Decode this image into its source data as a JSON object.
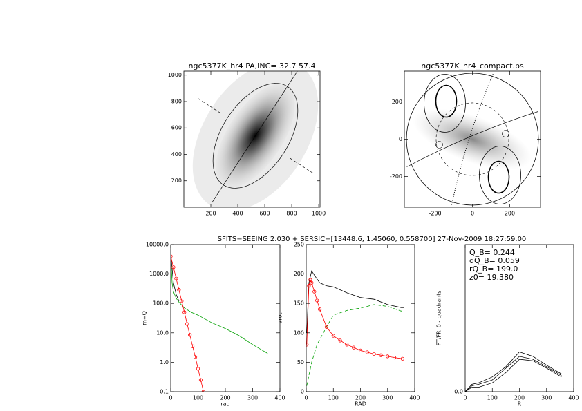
{
  "figure_title": "SFITS=SEEING 2.030 + SERSIC=[13448.6, 1.45060, 0.558700]  27-Nov-2009 18:27:59.00",
  "chart_data": [
    {
      "type": "image",
      "title": "ngc5377K_hr4 PA,INC= 32.7 57.4",
      "xlim": [
        0,
        1010
      ],
      "ylim": [
        0,
        1030
      ],
      "xticks": [
        200,
        400,
        600,
        800,
        1000
      ],
      "yticks": [
        200,
        400,
        600,
        800,
        1000
      ]
    },
    {
      "type": "contour",
      "title": "ngc5377K_hr4_compact.ps",
      "xlim": [
        -365,
        365
      ],
      "ylim": [
        -365,
        365
      ],
      "xticks": [
        -200,
        0,
        200
      ],
      "yticks": [
        -200,
        0,
        200
      ]
    },
    {
      "type": "line",
      "xlabel": "rad",
      "ylabel": "m=Q",
      "log_y": true,
      "xlim": [
        0,
        400
      ],
      "ylim": [
        0.1,
        10000
      ],
      "xticks": [
        0,
        100,
        200,
        300,
        400
      ],
      "yticks": [
        0.1,
        {
          "value": 1,
          "label": "1.0"
        },
        {
          "value": 10,
          "label": "10.0"
        },
        {
          "value": 100,
          "label": "100.0"
        },
        {
          "value": 1000,
          "label": "1000.0"
        },
        {
          "value": 10000,
          "label": "10000.0"
        }
      ],
      "series": [
        {
          "color": "#000000",
          "linestyle": "solid",
          "x": [
            0,
            5,
            10,
            20,
            30
          ],
          "values": [
            5000,
            1500,
            500,
            200,
            120
          ]
        },
        {
          "color": "#00a000",
          "linestyle": "solid",
          "x": [
            0,
            5,
            10,
            20,
            30,
            50,
            75,
            100,
            150,
            200,
            250,
            300,
            355
          ],
          "values": [
            4000,
            500,
            250,
            150,
            110,
            70,
            50,
            40,
            22,
            14,
            8,
            4,
            2
          ]
        },
        {
          "color": "#ff0000",
          "linestyle": "solid",
          "marker": "o",
          "x": [
            0,
            10,
            20,
            30,
            40,
            50,
            60,
            70,
            80,
            90,
            100,
            110,
            120
          ],
          "values": [
            4000,
            1700,
            700,
            290,
            120,
            50,
            20,
            8.5,
            3.5,
            1.5,
            0.6,
            0.25,
            0.1
          ]
        }
      ]
    },
    {
      "type": "line",
      "xlabel": "RAD",
      "ylabel": "vrot",
      "xlim": [
        0,
        400
      ],
      "ylim": [
        0,
        250
      ],
      "xticks": [
        0,
        100,
        200,
        300,
        400
      ],
      "yticks": [
        0,
        50,
        100,
        150,
        200,
        250
      ],
      "series": [
        {
          "color": "#000000",
          "linestyle": "solid",
          "x": [
            2,
            10,
            20,
            30,
            50,
            75,
            100,
            150,
            200,
            250,
            300,
            350,
            360
          ],
          "values": [
            100,
            185,
            205,
            198,
            185,
            180,
            178,
            168,
            160,
            157,
            148,
            143,
            143
          ]
        },
        {
          "color": "#00a000",
          "linestyle": "dashed",
          "x": [
            2,
            20,
            40,
            75,
            100,
            150,
            200,
            250,
            300,
            350,
            360
          ],
          "values": [
            10,
            50,
            80,
            110,
            130,
            138,
            142,
            148,
            145,
            137,
            138
          ]
        },
        {
          "color": "#ff0000",
          "linestyle": "solid",
          "marker": "o",
          "x": [
            2,
            10,
            15,
            20,
            30,
            40,
            50,
            75,
            100,
            125,
            150,
            175,
            200,
            225,
            250,
            275,
            300,
            325,
            355
          ],
          "values": [
            80,
            180,
            190,
            185,
            170,
            155,
            140,
            110,
            95,
            87,
            80,
            75,
            70,
            67,
            64,
            62,
            60,
            58,
            56
          ]
        }
      ]
    },
    {
      "type": "line",
      "xlabel": "R",
      "ylabel": "FT/FR_0 - quadrants",
      "xlim": [
        0,
        400
      ],
      "ylim": [
        0,
        1
      ],
      "xticks": [
        0,
        100,
        200,
        300,
        400
      ],
      "yticks": [
        {
          "value": 0,
          "label": "0.0"
        }
      ],
      "annotations": [
        "Q_B=  0.244",
        "dQ_B=  0.059",
        "rQ_B=  199.0",
        "z0= 19.380"
      ],
      "series": [
        {
          "color": "#000000",
          "linestyle": "solid",
          "x": [
            0,
            25,
            50,
            100,
            150,
            200,
            250,
            300,
            355
          ],
          "values": [
            0,
            0.05,
            0.06,
            0.1,
            0.17,
            0.27,
            0.24,
            0.18,
            0.12
          ]
        },
        {
          "color": "#000000",
          "linestyle": "solid",
          "x": [
            0,
            25,
            50,
            100,
            150,
            200,
            250,
            300,
            355
          ],
          "values": [
            0,
            0.04,
            0.05,
            0.08,
            0.16,
            0.24,
            0.22,
            0.17,
            0.11
          ]
        },
        {
          "color": "#000000",
          "linestyle": "solid",
          "x": [
            0,
            25,
            50,
            100,
            150,
            200,
            250,
            300,
            355
          ],
          "values": [
            0,
            0.03,
            0.03,
            0.06,
            0.13,
            0.22,
            0.21,
            0.16,
            0.1
          ]
        }
      ]
    }
  ]
}
